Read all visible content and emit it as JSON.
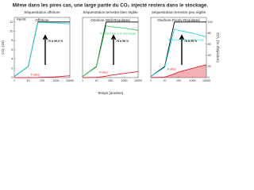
{
  "title": "Même dans les pires cas, une large partie du CO₂ injecté restera dans le stockage.",
  "xlabel": "Temps (années)",
  "ylabel": "CO₂ (Gt)",
  "y2label": "CO₂ (% d'injection)",
  "chart_data": [
    {
      "type": "line",
      "title": "Séquestration offshore",
      "subtitle": "Offshore",
      "annotation": "70 à 99,9 %",
      "x": [
        1,
        10,
        50,
        100,
        1000,
        10000
      ],
      "xlim": [
        1,
        10000
      ],
      "xticks": [
        1,
        10,
        100,
        1000,
        10000
      ],
      "ylim": [
        0,
        13
      ],
      "yticks": [
        0,
        2,
        4,
        6,
        8,
        10,
        12
      ],
      "series": [
        {
          "name": "Injecté",
          "color": "#000000",
          "values": [
            0.24,
            2.4,
            12,
            12,
            12,
            12
          ]
        },
        {
          "color": "#22d3e6",
          "values": [
            0.24,
            2.4,
            11.9,
            11.9,
            11.8,
            11.6
          ]
        },
        {
          "name": "Fuites",
          "color": "#e0202a",
          "values": [
            0,
            0,
            0.02,
            0.05,
            0.15,
            0.4
          ]
        }
      ]
    },
    {
      "type": "line",
      "title": "Séquestration terrestre bien réglée",
      "subtitle": "Onshore Well-Regulated",
      "annotation": "78 à 98 %",
      "x": [
        1,
        10,
        50,
        100,
        1000,
        10000
      ],
      "xlim": [
        1,
        10000
      ],
      "xticks": [
        1,
        10,
        100,
        1000,
        10000
      ],
      "ylim": [
        0,
        13
      ],
      "series": [
        {
          "color": "#000000",
          "values": [
            0.24,
            2.4,
            12,
            12,
            12,
            12
          ]
        },
        {
          "name": "Restant dans le stockage",
          "color": "#3ecf6a",
          "values": [
            0.24,
            2.3,
            11.2,
            11,
            10.7,
            10.2
          ]
        },
        {
          "name": "Fuites",
          "color": "#e0202a",
          "values": [
            0,
            0.05,
            0.3,
            0.5,
            0.9,
            1.3
          ]
        }
      ]
    },
    {
      "type": "line",
      "title": "Séquestration terrestre peu réglée",
      "subtitle": "Onshore Poorly-Regulated",
      "annotation": "78 à 99 %",
      "x": [
        1,
        10,
        50,
        100,
        1000,
        10000
      ],
      "xlim": [
        1,
        10000
      ],
      "xticks": [
        1,
        10,
        100,
        1000,
        10000
      ],
      "ylim": [
        0,
        13
      ],
      "y2lim": [
        0,
        108.3
      ],
      "y2ticks": [
        0,
        20,
        40,
        60,
        80,
        100
      ],
      "series": [
        {
          "color": "#000000",
          "values": [
            0.24,
            2.4,
            12,
            12,
            12,
            12
          ]
        },
        {
          "name": "Restant dans le stockage",
          "color": "#22d3e6",
          "values": [
            0.24,
            2.2,
            10.5,
            10.2,
            9.6,
            8.8
          ]
        },
        {
          "name": "Fuites",
          "color": "#e0202a",
          "area": true,
          "values": [
            0,
            0.1,
            0.8,
            1.2,
            2,
            2.8
          ]
        }
      ]
    }
  ]
}
